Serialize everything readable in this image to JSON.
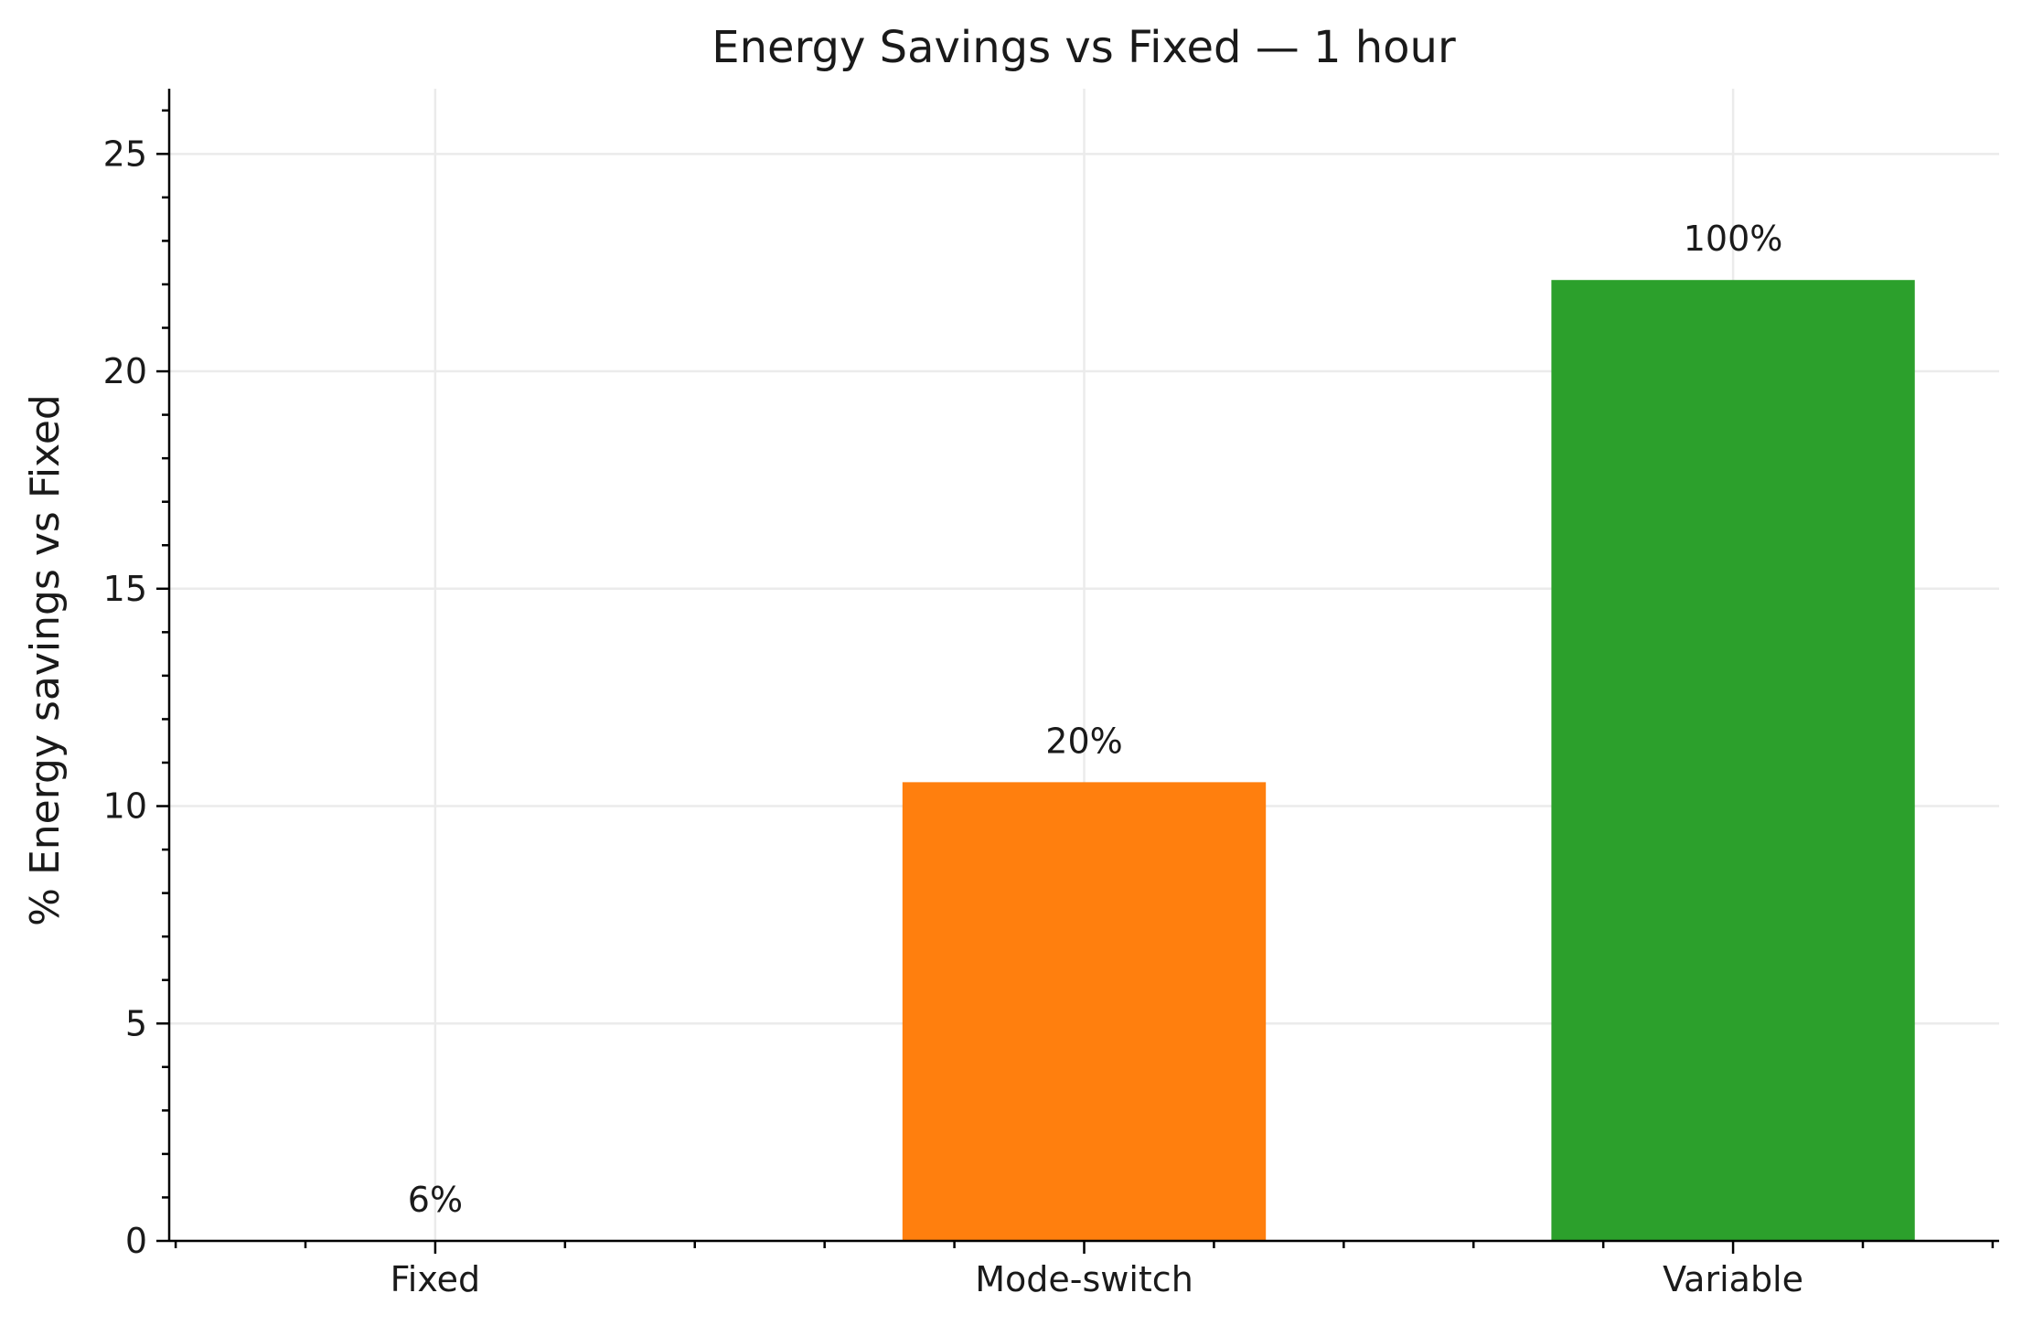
{
  "chart_data": {
    "type": "bar",
    "title": "Energy Savings vs Fixed — 1 hour",
    "xlabel": "",
    "ylabel": "% Energy savings vs Fixed",
    "categories": [
      "Fixed",
      "Mode-switch",
      "Variable"
    ],
    "values": [
      0,
      10.55,
      22.1
    ],
    "data_labels": [
      "6%",
      "20%",
      "100%"
    ],
    "colors": [
      "#1f77b4",
      "#ff7f0e",
      "#2ca02c"
    ],
    "ylim": [
      0,
      26.5
    ],
    "yticks": [
      0,
      5,
      10,
      15,
      20,
      25
    ],
    "grid": true,
    "legend": "none"
  }
}
